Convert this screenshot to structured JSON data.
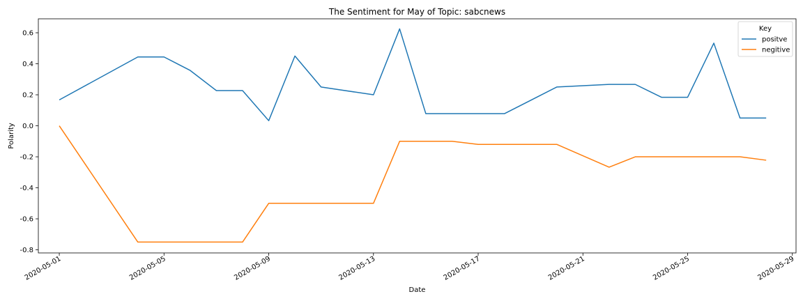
{
  "chart_data": {
    "type": "line",
    "title": "The Sentiment for May of Topic: sabcnews",
    "xlabel": "Date",
    "ylabel": "Polarity",
    "x_ticks": [
      "2020-05-01",
      "2020-05-05",
      "2020-05-09",
      "2020-05-13",
      "2020-05-17",
      "2020-05-21",
      "2020-05-25",
      "2020-05-29"
    ],
    "y_ticks": [
      0.6,
      0.4,
      0.2,
      0.0,
      -0.2,
      -0.4,
      -0.6,
      -0.8
    ],
    "xlim": [
      "2020-04-30",
      "2020-05-29"
    ],
    "ylim": [
      -0.82,
      0.69
    ],
    "grid": false,
    "legend": {
      "title": "Key",
      "position": "top-right"
    },
    "series": [
      {
        "name": "positve",
        "color": "#1f77b4",
        "points": [
          [
            "2020-05-01",
            0.167
          ],
          [
            "2020-05-04",
            0.444
          ],
          [
            "2020-05-05",
            0.444
          ],
          [
            "2020-05-06",
            0.357
          ],
          [
            "2020-05-07",
            0.227
          ],
          [
            "2020-05-08",
            0.227
          ],
          [
            "2020-05-09",
            0.033
          ],
          [
            "2020-05-10",
            0.45
          ],
          [
            "2020-05-11",
            0.25
          ],
          [
            "2020-05-13",
            0.2
          ],
          [
            "2020-05-14",
            0.625
          ],
          [
            "2020-05-15",
            0.078
          ],
          [
            "2020-05-18",
            0.078
          ],
          [
            "2020-05-20",
            0.25
          ],
          [
            "2020-05-22",
            0.267
          ],
          [
            "2020-05-23",
            0.267
          ],
          [
            "2020-05-24",
            0.184
          ],
          [
            "2020-05-25",
            0.184
          ],
          [
            "2020-05-26",
            0.533
          ],
          [
            "2020-05-27",
            0.05
          ],
          [
            "2020-05-28",
            0.05
          ]
        ]
      },
      {
        "name": "negitive",
        "color": "#ff7f0e",
        "points": [
          [
            "2020-05-01",
            0.0
          ],
          [
            "2020-05-04",
            -0.75
          ],
          [
            "2020-05-08",
            -0.75
          ],
          [
            "2020-05-09",
            -0.5
          ],
          [
            "2020-05-13",
            -0.5
          ],
          [
            "2020-05-14",
            -0.1
          ],
          [
            "2020-05-16",
            -0.1
          ],
          [
            "2020-05-17",
            -0.12
          ],
          [
            "2020-05-20",
            -0.12
          ],
          [
            "2020-05-22",
            -0.267
          ],
          [
            "2020-05-23",
            -0.2
          ],
          [
            "2020-05-27",
            -0.2
          ],
          [
            "2020-05-28",
            -0.222
          ]
        ]
      }
    ]
  }
}
